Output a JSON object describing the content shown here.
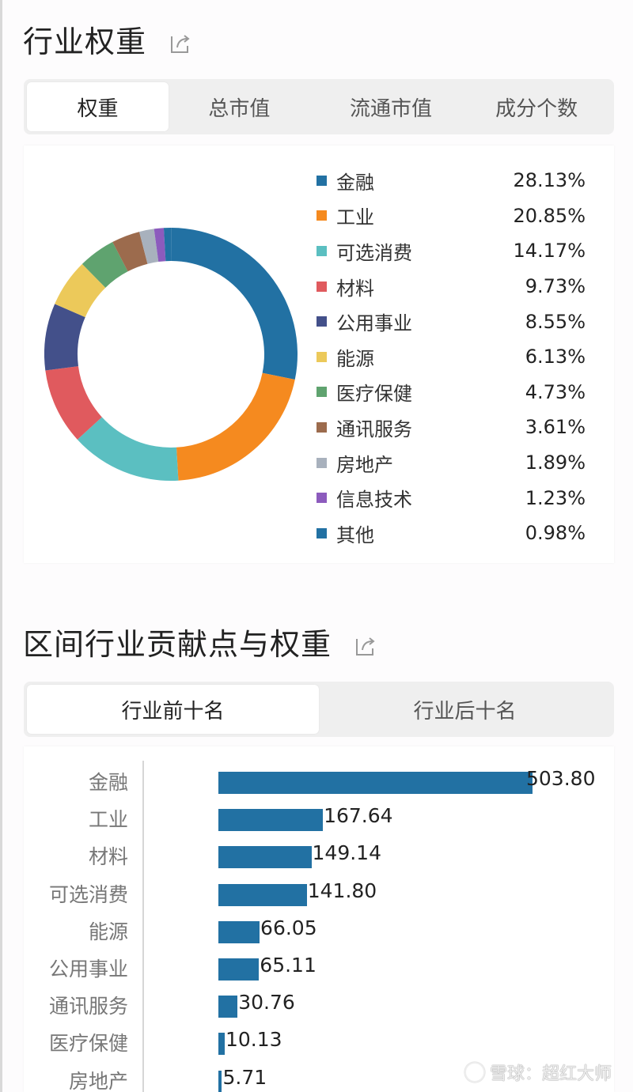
{
  "section1": {
    "title": "行业权重",
    "tabs": [
      {
        "label": "权重",
        "active": true
      },
      {
        "label": "总市值",
        "active": false
      },
      {
        "label": "流通市值",
        "active": false
      },
      {
        "label": "成分个数",
        "active": false
      }
    ]
  },
  "section2": {
    "title": "区间行业贡献点与权重",
    "tabs": [
      {
        "label": "行业前十名",
        "active": true
      },
      {
        "label": "行业后十名",
        "active": false
      }
    ]
  },
  "watermark": "雪球：超红大师",
  "chart_data": [
    {
      "type": "pie",
      "subtype": "donut",
      "title": "行业权重",
      "categories": [
        "金融",
        "工业",
        "可选消费",
        "材料",
        "公用事业",
        "能源",
        "医疗保健",
        "通讯服务",
        "房地产",
        "信息技术",
        "其他"
      ],
      "values": [
        28.13,
        20.85,
        14.17,
        9.73,
        8.55,
        6.13,
        4.73,
        3.61,
        1.89,
        1.23,
        0.98
      ],
      "labels": [
        "28.13%",
        "20.85%",
        "14.17%",
        "9.73%",
        "8.55%",
        "6.13%",
        "4.73%",
        "3.61%",
        "1.89%",
        "1.23%",
        "0.98%"
      ],
      "colors": [
        "#2271a3",
        "#f58a1f",
        "#5bbfc1",
        "#e05a5e",
        "#43508a",
        "#ecc95a",
        "#5fa36f",
        "#9c6b4d",
        "#a8b1bd",
        "#8c5bbd",
        "#2271a3"
      ],
      "legend_position": "right"
    },
    {
      "type": "bar",
      "orientation": "horizontal",
      "title": "区间行业贡献点与权重 - 行业前十名",
      "categories": [
        "金融",
        "工业",
        "材料",
        "可选消费",
        "能源",
        "公用事业",
        "通讯服务",
        "医疗保健",
        "房地产"
      ],
      "values": [
        503.8,
        167.64,
        149.14,
        141.8,
        66.05,
        65.11,
        30.76,
        10.13,
        5.71
      ],
      "labels": [
        "503.80",
        "167.64",
        "149.14",
        "141.80",
        "66.05",
        "65.11",
        "30.76",
        "10.13",
        "5.71"
      ],
      "color": "#2271a3",
      "grid": false
    }
  ]
}
